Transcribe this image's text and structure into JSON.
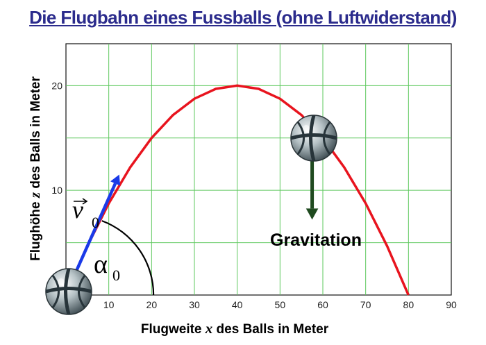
{
  "title": "Die Flugbahn eines Fussballs (ohne Luftwiderstand)",
  "chart_data": {
    "type": "line",
    "xlabel": {
      "before": "Flugweite ",
      "var": "x",
      "after": " des Balls in Meter"
    },
    "ylabel": {
      "before": "Flughöhe ",
      "var": "z",
      "after": " des Balls in Meter"
    },
    "xlim": [
      0,
      90
    ],
    "ylim": [
      0,
      24
    ],
    "x_ticks": [
      10,
      20,
      30,
      40,
      50,
      60,
      70,
      80,
      90
    ],
    "y_ticks": [
      10,
      20
    ],
    "grid": true,
    "series": [
      {
        "color": "#e8141e",
        "x": [
          0,
          5,
          10,
          15,
          20,
          25,
          30,
          35,
          40,
          45,
          50,
          55,
          60,
          65,
          70,
          75,
          80
        ],
        "y": [
          0,
          4.69,
          8.75,
          12.19,
          15.0,
          17.19,
          18.75,
          19.69,
          20.0,
          19.69,
          18.75,
          17.19,
          15.0,
          12.19,
          8.75,
          4.69,
          0
        ]
      }
    ],
    "velocity_vector": {
      "from": [
        0,
        0
      ],
      "to": [
        10.5,
        11.5
      ],
      "color": "#1a3ae8"
    },
    "gravity_arrow": {
      "from": [
        57.5,
        15
      ],
      "to": [
        57.5,
        7.2
      ],
      "color": "#1f4a1f"
    },
    "angle_arc": {
      "center": [
        0,
        0
      ],
      "radius": 18.5,
      "color": "#000000"
    }
  },
  "labels": {
    "velocity": {
      "letter": "v",
      "subscript": "0"
    },
    "angle": {
      "letter": "α",
      "subscript": "0"
    },
    "gravity": "Gravitation"
  },
  "colors": {
    "title": "#2b2b8c",
    "grid": "#5ec85e",
    "axis": "#111111"
  },
  "icons": [
    "soccer-ball-icon",
    "soccer-ball-icon"
  ]
}
